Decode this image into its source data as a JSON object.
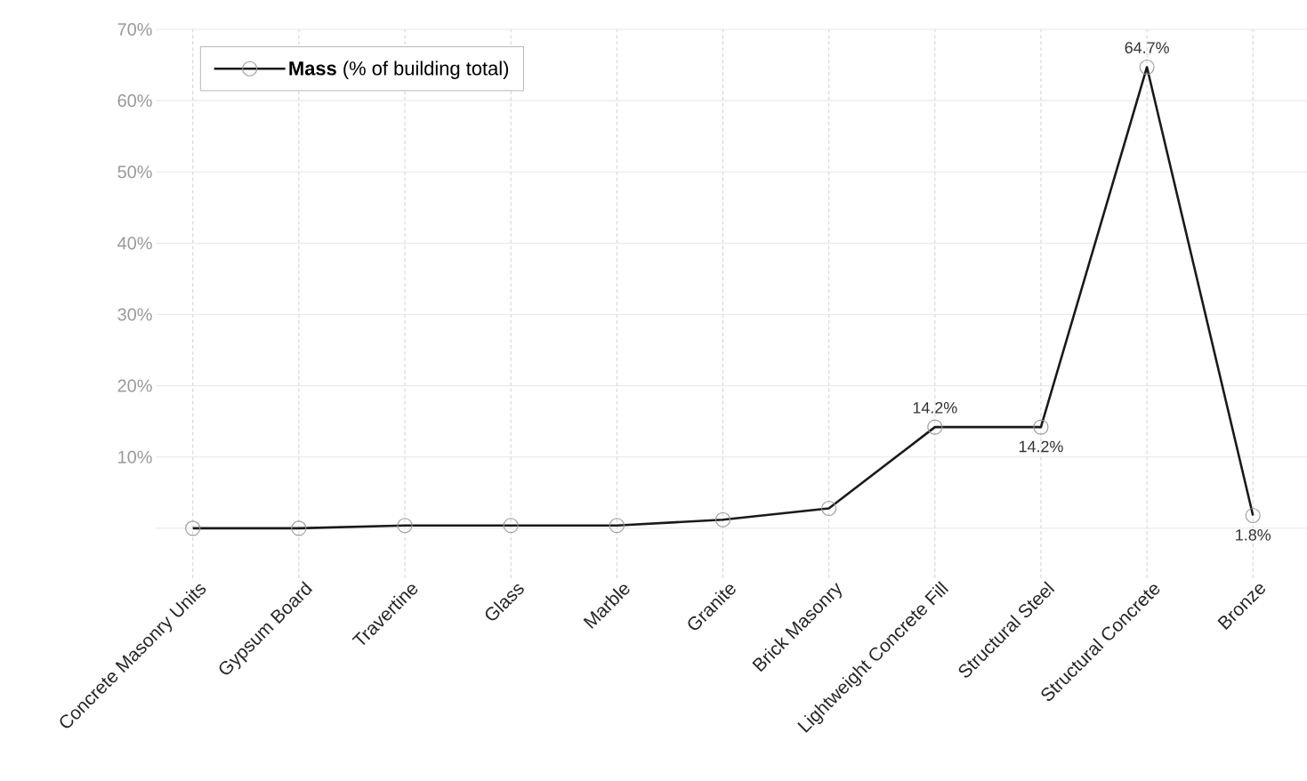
{
  "chart_data": {
    "type": "line",
    "categories": [
      "Concrete Masonry Units",
      "Gypsum Board",
      "Travertine",
      "Glass",
      "Marble",
      "Granite",
      "Brick Masonry",
      "Lightweight Concrete Fill",
      "Structural Steel",
      "Structural Concrete",
      "Bronze"
    ],
    "series": [
      {
        "name": "**Mass** (% of building total)",
        "color": "#1a1a1a",
        "values": [
          0,
          0,
          0.4,
          0.4,
          0.4,
          1.2,
          2.8,
          14.2,
          14.2,
          64.7,
          1.8
        ],
        "value_labels": [
          null,
          null,
          null,
          null,
          null,
          null,
          null,
          "14.2%",
          "14.2%",
          "64.7%",
          "1.8%"
        ]
      }
    ],
    "ylim": [
      -7,
      70
    ],
    "yticks": [
      {
        "value": 0,
        "label": null
      },
      {
        "value": 10,
        "label": "10%"
      },
      {
        "value": 20,
        "label": "20%"
      },
      {
        "value": 30,
        "label": "30%"
      },
      {
        "value": 40,
        "label": "40%"
      },
      {
        "value": 50,
        "label": "50%"
      },
      {
        "value": 60,
        "label": "60%"
      },
      {
        "value": 70,
        "label": "70%"
      }
    ],
    "grid": true,
    "legend": "top left",
    "marker": "circle",
    "line_style": "solid"
  }
}
